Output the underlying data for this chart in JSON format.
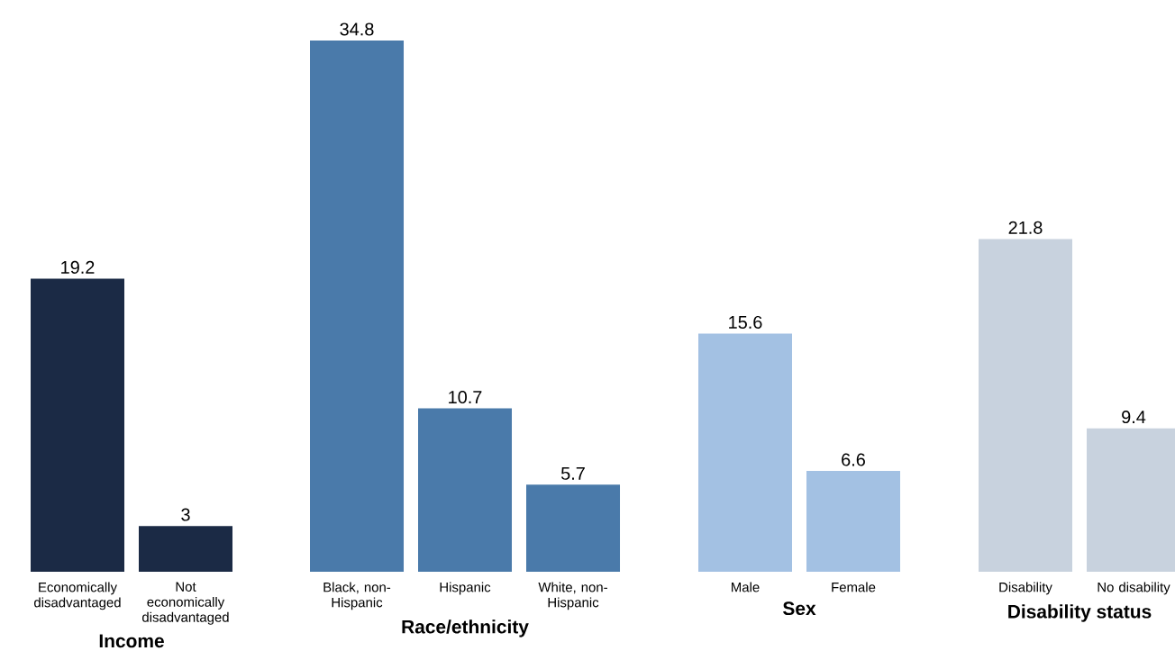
{
  "chart_data": [
    {
      "type": "bar",
      "xlabel": "Income",
      "categories": [
        "Economically disadvantaged",
        "Not economically disadvantaged"
      ],
      "values": [
        19.2,
        3
      ],
      "color": "#1b2a45",
      "tick_labels": "x",
      "data_labels": true
    },
    {
      "type": "bar",
      "xlabel": "Race/ethnicity",
      "categories": [
        "Black, non-Hispanic",
        "Hispanic",
        "White, non-Hispanic"
      ],
      "values": [
        34.8,
        10.7,
        5.7
      ],
      "color": "#4a7aaa",
      "tick_labels": "x",
      "data_labels": true
    },
    {
      "type": "bar",
      "xlabel": "Sex",
      "categories": [
        "Male",
        "Female"
      ],
      "values": [
        15.6,
        6.6
      ],
      "color": "#a3c1e3",
      "tick_labels": "x",
      "data_labels": true
    },
    {
      "type": "bar",
      "xlabel": "Disability status",
      "categories": [
        "Disability",
        "No disability"
      ],
      "values": [
        21.8,
        9.4
      ],
      "color": "#c8d2de",
      "tick_labels": "x",
      "data_labels": true
    }
  ]
}
